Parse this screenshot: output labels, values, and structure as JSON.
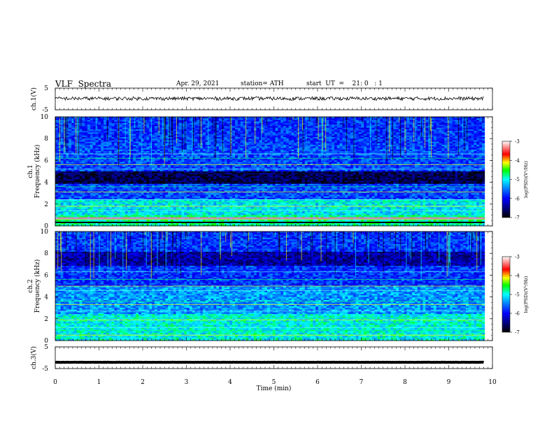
{
  "header": {
    "title": "VLF  Spectra",
    "date": "Apr. 29, 2021",
    "station": "station= ATH",
    "start": "start  UT  =    21: 0   : 1"
  },
  "chart_data": [
    {
      "type": "line",
      "ylabel": "ch.1(V)",
      "ylim": [
        -5,
        5
      ],
      "yticks": [
        "5",
        "-5"
      ],
      "xlim": [
        0,
        10
      ],
      "series": [
        {
          "mean": 0.2,
          "amplitude": 0.8,
          "x_end": 9.8
        }
      ]
    },
    {
      "type": "heatmap",
      "ylabel": "ch.1\nFrequency  (kHz)",
      "ylim": [
        0,
        10
      ],
      "yticks": [
        "0",
        "2",
        "4",
        "6",
        "8",
        "10"
      ],
      "xlim": [
        0,
        10
      ],
      "colorbar": {
        "label": "log(PSD)(V²/Hz)",
        "range": [
          -7,
          -3
        ],
        "ticks": [
          "-3",
          "-4",
          "-5",
          "-6",
          "-7"
        ]
      }
    },
    {
      "type": "heatmap",
      "ylabel": "ch.2\nFrequency  (kHz)",
      "ylim": [
        0,
        10
      ],
      "yticks": [
        "0",
        "2",
        "4",
        "6",
        "8",
        "10"
      ],
      "xlim": [
        0,
        10
      ],
      "colorbar": {
        "label": "log(PSD)(V²/Hz)",
        "range": [
          -7,
          -3
        ],
        "ticks": [
          "-3",
          "-4",
          "-5",
          "-6",
          "-7"
        ]
      }
    },
    {
      "type": "line",
      "ylabel": "ch.3(V)",
      "ylim": [
        -5,
        5
      ],
      "yticks": [
        "5",
        "-5"
      ],
      "xlim": [
        0,
        10
      ],
      "series": [
        {
          "mean": -2.1,
          "amplitude": 0.05,
          "x_end": 9.8
        }
      ]
    }
  ],
  "xaxis": {
    "label": "Time  (min)",
    "ticks": [
      "0",
      "1",
      "2",
      "3",
      "4",
      "5",
      "6",
      "7",
      "8",
      "9",
      "10"
    ]
  }
}
